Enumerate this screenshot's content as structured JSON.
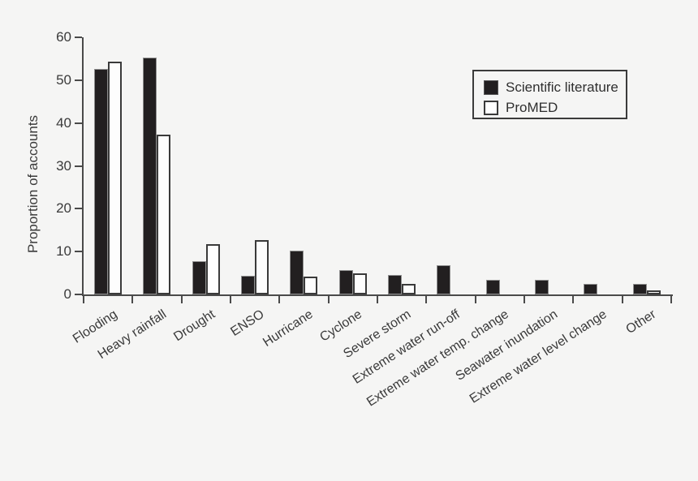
{
  "chart_data": {
    "type": "bar",
    "title": "",
    "xlabel": "",
    "ylabel": "Proportion of accounts",
    "ylim": [
      0,
      60
    ],
    "yticks": [
      0,
      10,
      20,
      30,
      40,
      50,
      60
    ],
    "grid": false,
    "legend_position": "upper right",
    "categories": [
      "Flooding",
      "Heavy rainfall",
      "Drought",
      "ENSO",
      "Hurricane",
      "Cyclone",
      "Severe storm",
      "Extreme water run-off",
      "Extreme water temp. change",
      "Seawater inundation",
      "Extreme water level change",
      "Other"
    ],
    "series": [
      {
        "name": "Scientific literature",
        "color": "#221f20",
        "values": [
          52.6,
          55.2,
          7.8,
          4.4,
          10.3,
          5.7,
          4.5,
          6.8,
          3.4,
          3.4,
          2.4,
          2.4
        ]
      },
      {
        "name": "ProMED",
        "color": "#ffffff",
        "values": [
          54.3,
          37.2,
          11.7,
          12.6,
          4.2,
          4.9,
          2.5,
          0,
          0,
          0,
          0,
          1.0
        ]
      }
    ]
  },
  "colors": {
    "background": "#f5f5f4",
    "axis": "#4a4a4a",
    "text": "#3a3a3a",
    "bar_dark": "#221f20",
    "bar_light": "#ffffff"
  }
}
